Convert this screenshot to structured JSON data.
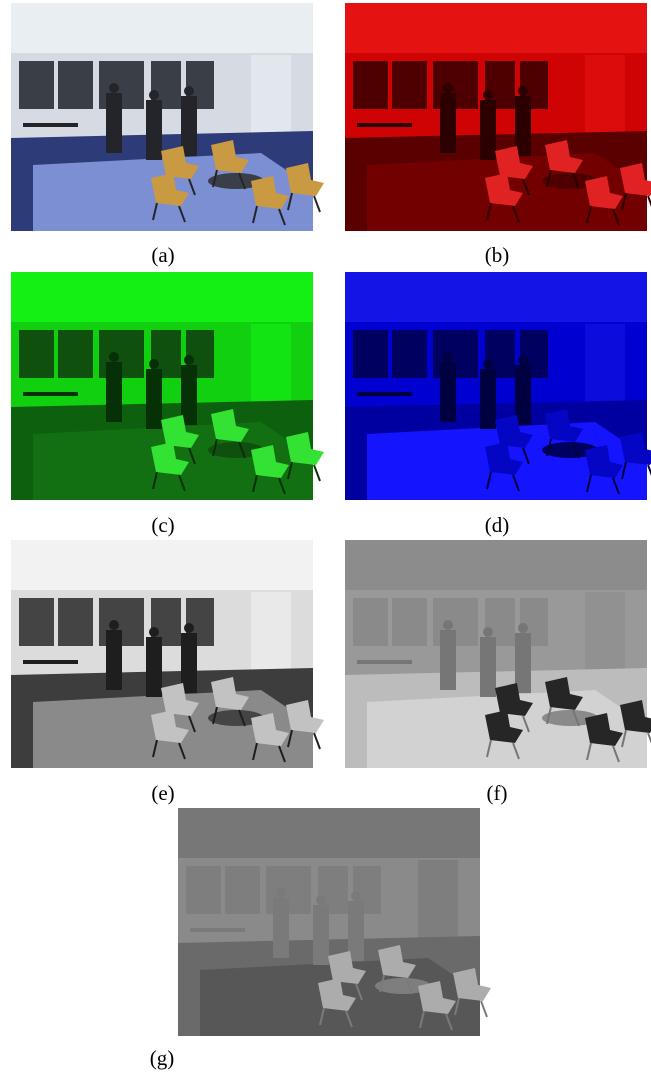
{
  "figure": {
    "panels": [
      {
        "caption": "(a)"
      },
      {
        "caption": "(b)"
      },
      {
        "caption": "(c)"
      },
      {
        "caption": "(d)"
      },
      {
        "caption": "(e)"
      },
      {
        "caption": "(f)"
      },
      {
        "caption": "(g)"
      }
    ]
  }
}
